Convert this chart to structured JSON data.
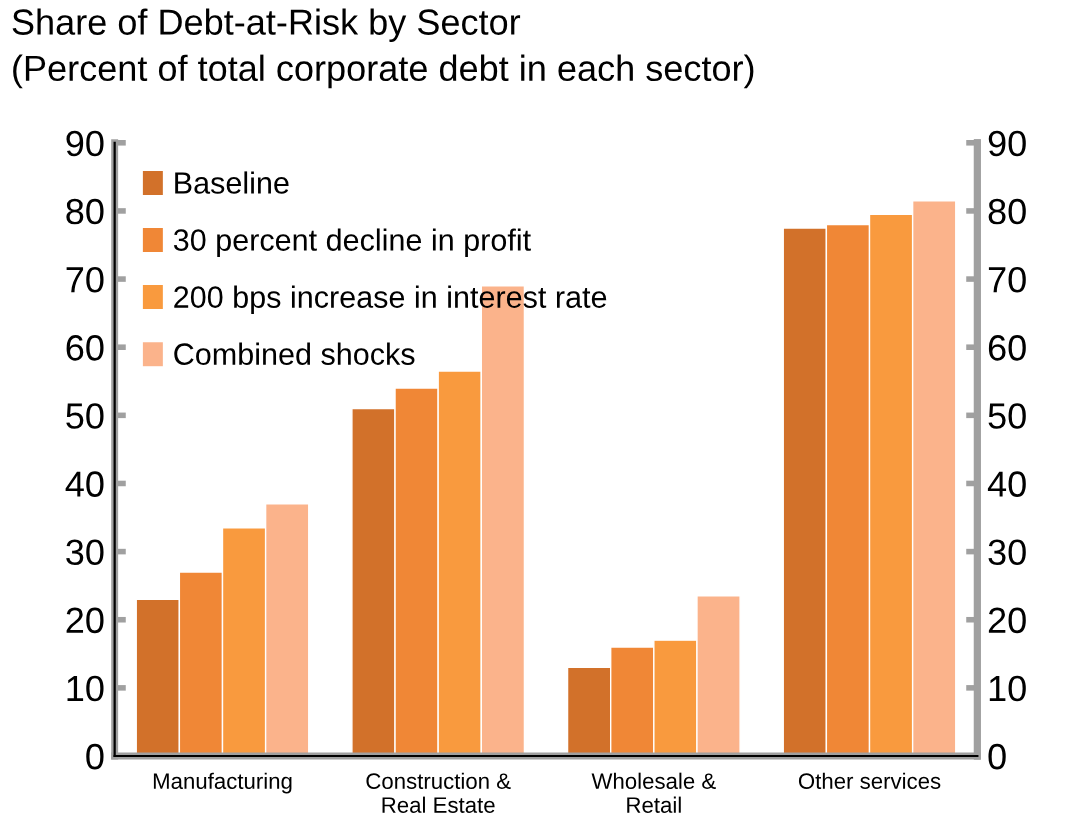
{
  "chart_data": {
    "type": "bar",
    "title": "Share of Debt-at-Risk by Sector",
    "subtitle": "(Percent of total corporate debt in each sector)",
    "categories": [
      "Manufacturing",
      "Construction &\nReal Estate",
      "Wholesale &\nRetail",
      "Other services"
    ],
    "series": [
      {
        "name": "Baseline",
        "color": "#d2712a",
        "values": [
          23,
          51,
          13,
          77.5
        ]
      },
      {
        "name": "30 percent decline in profit",
        "color": "#f08736",
        "values": [
          27,
          54,
          16,
          78
        ]
      },
      {
        "name": "200 bps increase in interest rate",
        "color": "#f99a3e",
        "values": [
          33.5,
          56.5,
          17,
          79.5
        ]
      },
      {
        "name": "Combined shocks",
        "color": "#fbb38b",
        "values": [
          37,
          69,
          23.5,
          81.5
        ]
      }
    ],
    "ylim": [
      0,
      90
    ],
    "yticks": [
      0,
      10,
      20,
      30,
      40,
      50,
      60,
      70,
      80,
      90
    ],
    "y2lim": [
      0,
      90
    ],
    "y2ticks": [
      0,
      10,
      20,
      30,
      40,
      50,
      60,
      70,
      80,
      90
    ],
    "legend": "top left",
    "grid": false
  }
}
